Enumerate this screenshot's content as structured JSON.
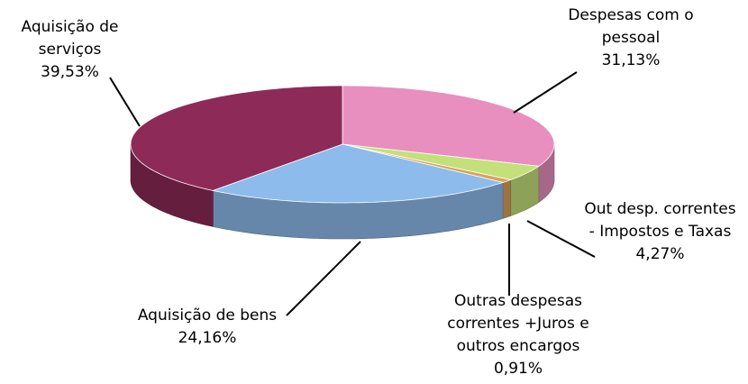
{
  "chart_data": {
    "type": "pie",
    "categories": [
      "Despesas com o pessoal",
      "Out desp. correntes - Impostos e Taxas",
      "Outras despesas correntes +Juros e outros encargos",
      "Aquisição de bens",
      "Aquisição de serviços"
    ],
    "values": [
      31.13,
      4.27,
      0.91,
      24.16,
      39.53
    ],
    "value_labels": [
      "31,13%",
      "4,27%",
      "0,91%",
      "24,16%",
      "39,53%"
    ],
    "colors": [
      "#e88fbf",
      "#c4e07a",
      "#d9a15a",
      "#8dbbec",
      "#8e2a58"
    ]
  }
}
